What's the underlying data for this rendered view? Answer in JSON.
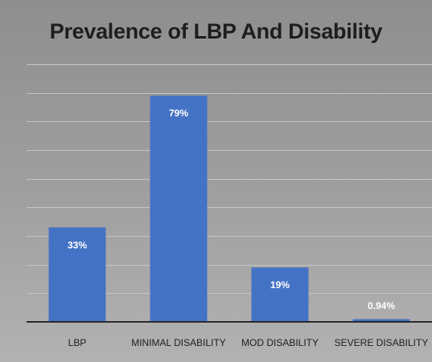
{
  "chart_data": {
    "type": "bar",
    "title": "Prevalence of LBP And Disability",
    "xlabel": "",
    "ylabel": "",
    "categories": [
      "LBP",
      "MINIMAL DISABILITY",
      "MOD DISABILITY",
      "SEVERE DISABILITY"
    ],
    "values": [
      33,
      79,
      19,
      0.94
    ],
    "data_labels": [
      "33%",
      "79%",
      "19%",
      "0.94%"
    ],
    "ylim": [
      0,
      90
    ],
    "y_step": 10,
    "grid": true,
    "bar_color": "#4472c4",
    "data_label_color": "#ffffff"
  }
}
